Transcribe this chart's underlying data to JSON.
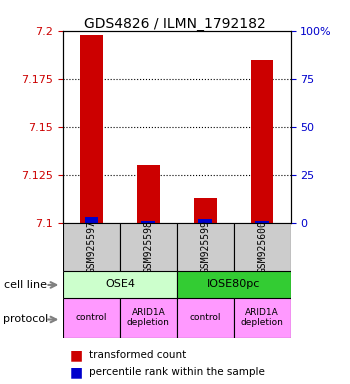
{
  "title": "GDS4826 / ILMN_1792182",
  "samples": [
    "GSM925597",
    "GSM925598",
    "GSM925599",
    "GSM925600"
  ],
  "red_values": [
    7.198,
    7.13,
    7.113,
    7.185
  ],
  "blue_values": [
    7.103,
    7.101,
    7.102,
    7.101
  ],
  "y_min": 7.1,
  "y_max": 7.2,
  "y_ticks": [
    7.1,
    7.125,
    7.15,
    7.175,
    7.2
  ],
  "y_tick_labels": [
    "7.1",
    "7.125",
    "7.15",
    "7.175",
    "7.2"
  ],
  "right_y_ticks": [
    0,
    25,
    50,
    75,
    100
  ],
  "right_y_tick_labels": [
    "0",
    "25",
    "50",
    "75",
    "100%"
  ],
  "cell_line_labels": [
    "OSE4",
    "IOSE80pc"
  ],
  "cell_line_colors": [
    "#ccffcc",
    "#33cc33"
  ],
  "protocol_labels": [
    "control",
    "ARID1A\ndepletion",
    "control",
    "ARID1A\ndepletion"
  ],
  "protocol_color": "#ff99ff",
  "sample_bg_color": "#cccccc",
  "bar_width": 0.4,
  "red_color": "#cc0000",
  "blue_color": "#0000cc",
  "left_label_color": "#cc0000",
  "right_label_color": "#0000cc"
}
